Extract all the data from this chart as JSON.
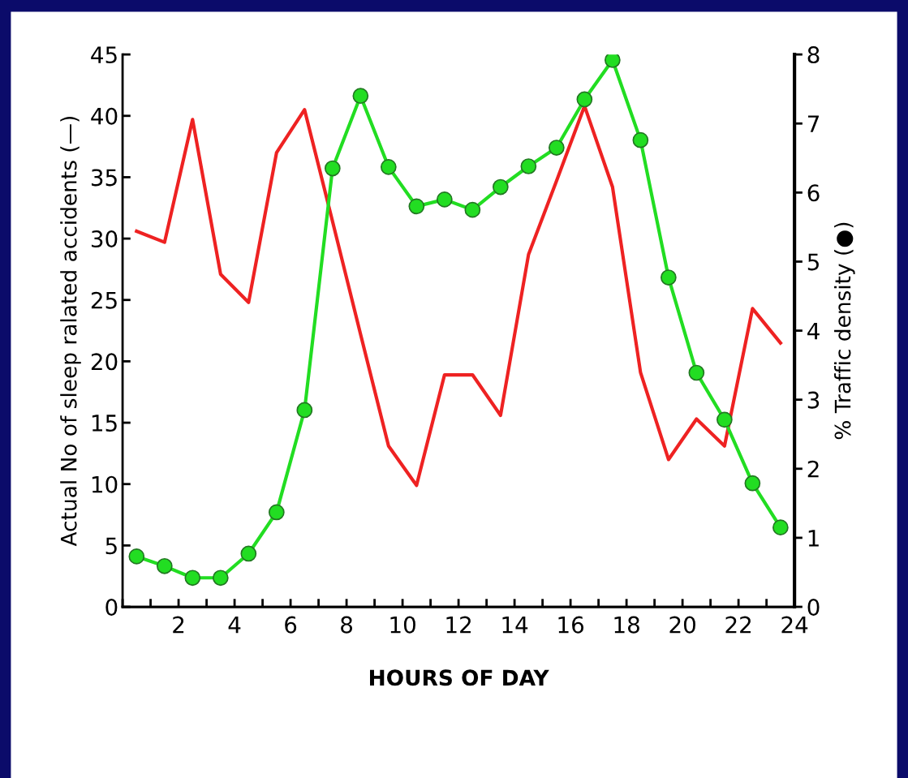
{
  "chart_data": {
    "type": "line",
    "xlabel": "HOURS OF DAY",
    "ylabel": "Actual No of sleep ralated accidents (—)",
    "y2label": "% Traffic density (●)",
    "xlim": [
      0,
      24
    ],
    "xticks": [
      {
        "value": 0,
        "label": null
      },
      {
        "value": 1,
        "label": null
      },
      2,
      {
        "value": 3,
        "label": null
      },
      4,
      {
        "value": 5,
        "label": null
      },
      6,
      {
        "value": 7,
        "label": null
      },
      8,
      {
        "value": 9,
        "label": null
      },
      10,
      {
        "value": 11,
        "label": null
      },
      12,
      {
        "value": 13,
        "label": null
      },
      14,
      {
        "value": 15,
        "label": null
      },
      16,
      {
        "value": 17,
        "label": null
      },
      18,
      {
        "value": 19,
        "label": null
      },
      20,
      {
        "value": 21,
        "label": null
      },
      22,
      {
        "value": 23,
        "label": null
      },
      24
    ],
    "ylim": [
      0,
      45
    ],
    "yticks": [
      0,
      5,
      10,
      15,
      20,
      25,
      30,
      35,
      40,
      45
    ],
    "y2lim": [
      0,
      8
    ],
    "y2ticks": [
      0,
      1,
      2,
      3,
      4,
      5,
      6,
      7,
      8
    ],
    "x": [
      0.5,
      1.5,
      2.5,
      3.5,
      4.5,
      5.5,
      6.5,
      7.5,
      8.5,
      9.5,
      10.5,
      11.5,
      12.5,
      13.5,
      14.5,
      15.5,
      16.5,
      17.5,
      18.5,
      19.5,
      20.5,
      21.5,
      22.5,
      23.5
    ],
    "grid": false,
    "legend": false,
    "series": [
      {
        "color": "#ee2222",
        "marker": "none",
        "values": [
          30.6,
          29.7,
          39.7,
          27.1,
          24.8,
          37.0,
          40.5,
          31.4,
          22.2,
          13.1,
          9.9,
          18.9,
          18.9,
          15.6,
          28.7,
          34.7,
          40.8,
          34.2,
          19.1,
          12.0,
          15.3,
          13.1,
          24.3,
          21.5
        ]
      },
      {
        "color": "#22dd22",
        "marker": "circle",
        "axis": "y2",
        "values": [
          0.73,
          0.59,
          0.42,
          0.42,
          0.77,
          1.37,
          2.85,
          6.35,
          7.4,
          6.37,
          5.8,
          5.9,
          5.75,
          6.08,
          6.38,
          6.65,
          7.35,
          7.92,
          6.76,
          4.77,
          3.39,
          2.71,
          1.79,
          1.15
        ]
      }
    ]
  }
}
